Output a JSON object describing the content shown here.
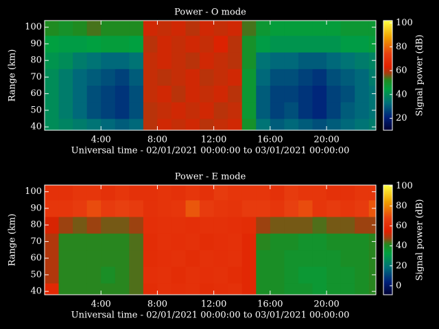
{
  "chart_data": [
    {
      "type": "heatmap",
      "title": "Power - O mode",
      "xlabel": "Universal time - 02/01/2021 00:00:00 to 03/01/2021 00:00:00",
      "ylabel": "Range (km)",
      "colorbar_label": "Signal power (dB)",
      "x": [
        0,
        1,
        2,
        3,
        4,
        5,
        6,
        7,
        8,
        9,
        10,
        11,
        12,
        13,
        14,
        15,
        16,
        17,
        18,
        19,
        20,
        21,
        22,
        23,
        23.5
      ],
      "y": [
        38,
        45,
        55,
        65,
        75,
        85,
        95,
        104
      ],
      "z": [
        [
          40,
          38,
          36,
          34,
          32,
          30,
          32,
          60,
          62,
          61,
          62,
          60,
          61,
          62,
          50,
          34,
          30,
          32,
          30,
          28,
          30,
          32,
          34,
          36
        ],
        [
          40,
          36,
          32,
          28,
          26,
          24,
          28,
          60,
          61,
          62,
          61,
          62,
          60,
          61,
          48,
          30,
          26,
          28,
          24,
          22,
          26,
          30,
          32,
          34
        ],
        [
          40,
          36,
          32,
          28,
          26,
          24,
          28,
          61,
          62,
          60,
          62,
          61,
          62,
          60,
          48,
          30,
          26,
          26,
          24,
          22,
          26,
          28,
          32,
          34
        ],
        [
          40,
          36,
          32,
          30,
          28,
          26,
          30,
          61,
          60,
          61,
          62,
          60,
          61,
          62,
          48,
          32,
          28,
          28,
          26,
          24,
          28,
          30,
          32,
          36
        ],
        [
          42,
          40,
          36,
          34,
          32,
          32,
          34,
          61,
          62,
          61,
          60,
          62,
          61,
          60,
          50,
          34,
          32,
          32,
          30,
          30,
          32,
          34,
          36,
          38
        ],
        [
          45,
          44,
          44,
          45,
          46,
          46,
          45,
          60,
          62,
          61,
          62,
          61,
          63,
          60,
          50,
          44,
          42,
          42,
          42,
          42,
          42,
          44,
          44,
          46
        ],
        [
          52,
          50,
          52,
          54,
          52,
          52,
          52,
          62,
          61,
          62,
          60,
          62,
          61,
          62,
          54,
          48,
          46,
          46,
          46,
          46,
          46,
          48,
          48,
          48
        ]
      ],
      "xlim": [
        0,
        23.5
      ],
      "ylim": [
        38,
        104
      ],
      "zlim": [
        10,
        102
      ],
      "xticks": [
        {
          "value": 4,
          "label": "4:00"
        },
        {
          "value": 8,
          "label": "8:00"
        },
        {
          "value": 12,
          "label": "12:00"
        },
        {
          "value": 16,
          "label": "16:00"
        },
        {
          "value": 20,
          "label": "20:00"
        }
      ],
      "yticks": [
        40,
        50,
        60,
        70,
        80,
        90,
        100
      ],
      "zticks": [
        20,
        40,
        60,
        80,
        100
      ],
      "colorscale": [
        [
          0,
          "#000030"
        ],
        [
          0.12,
          "#00207a"
        ],
        [
          0.25,
          "#00707a"
        ],
        [
          0.38,
          "#00a040"
        ],
        [
          0.46,
          "#208a20"
        ],
        [
          0.52,
          "#a04010"
        ],
        [
          0.58,
          "#e02000"
        ],
        [
          0.7,
          "#e84010"
        ],
        [
          0.85,
          "#f0a000"
        ],
        [
          1,
          "#ffff40"
        ]
      ]
    },
    {
      "type": "heatmap",
      "title": "Power - E mode",
      "xlabel": "Universal time - 02/01/2021 00:00:00 to 03/01/2021 00:00:00",
      "ylabel": "Range (km)",
      "colorbar_label": "Signal power (dB)",
      "x": [
        0,
        1,
        2,
        3,
        4,
        5,
        6,
        7,
        8,
        9,
        10,
        11,
        12,
        13,
        14,
        15,
        16,
        17,
        18,
        19,
        20,
        21,
        22,
        23,
        23.5
      ],
      "y": [
        38,
        45,
        55,
        65,
        75,
        85,
        95,
        104
      ],
      "z": [
        [
          58,
          42,
          42,
          42,
          42,
          42,
          44,
          60,
          62,
          61,
          62,
          60,
          61,
          62,
          58,
          40,
          40,
          38,
          38,
          36,
          38,
          38,
          40,
          42
        ],
        [
          50,
          42,
          42,
          42,
          40,
          42,
          44,
          61,
          62,
          60,
          62,
          61,
          62,
          60,
          58,
          40,
          40,
          38,
          36,
          36,
          38,
          38,
          40,
          42
        ],
        [
          50,
          42,
          42,
          42,
          42,
          42,
          44,
          60,
          61,
          62,
          60,
          62,
          61,
          62,
          58,
          40,
          40,
          38,
          38,
          38,
          38,
          40,
          40,
          42
        ],
        [
          50,
          42,
          42,
          42,
          42,
          42,
          44,
          60,
          62,
          61,
          62,
          60,
          61,
          62,
          58,
          42,
          40,
          40,
          38,
          38,
          40,
          40,
          40,
          42
        ],
        [
          54,
          48,
          46,
          48,
          46,
          46,
          48,
          61,
          62,
          62,
          61,
          62,
          62,
          61,
          60,
          48,
          46,
          46,
          46,
          44,
          46,
          46,
          48,
          48
        ],
        [
          64,
          64,
          66,
          70,
          66,
          68,
          66,
          62,
          63,
          64,
          72,
          66,
          64,
          63,
          66,
          66,
          64,
          68,
          70,
          64,
          66,
          64,
          66,
          72
        ],
        [
          62,
          62,
          64,
          64,
          62,
          64,
          62,
          62,
          63,
          62,
          64,
          62,
          66,
          64,
          64,
          64,
          62,
          66,
          64,
          64,
          62,
          62,
          64,
          64
        ]
      ],
      "xlim": [
        0,
        23.5
      ],
      "ylim": [
        38,
        104
      ],
      "zlim": [
        -9,
        101
      ],
      "xticks": [
        {
          "value": 4,
          "label": "4:00"
        },
        {
          "value": 8,
          "label": "8:00"
        },
        {
          "value": 12,
          "label": "12:00"
        },
        {
          "value": 16,
          "label": "16:00"
        },
        {
          "value": 20,
          "label": "20:00"
        }
      ],
      "yticks": [
        40,
        50,
        60,
        70,
        80,
        90,
        100
      ],
      "zticks": [
        0,
        20,
        40,
        60,
        80,
        100
      ],
      "colorscale": [
        [
          0,
          "#000030"
        ],
        [
          0.12,
          "#00207a"
        ],
        [
          0.25,
          "#00707a"
        ],
        [
          0.38,
          "#00a040"
        ],
        [
          0.46,
          "#208a20"
        ],
        [
          0.52,
          "#a04010"
        ],
        [
          0.58,
          "#e02000"
        ],
        [
          0.7,
          "#e84010"
        ],
        [
          0.85,
          "#f0a000"
        ],
        [
          1,
          "#ffff40"
        ]
      ]
    }
  ]
}
